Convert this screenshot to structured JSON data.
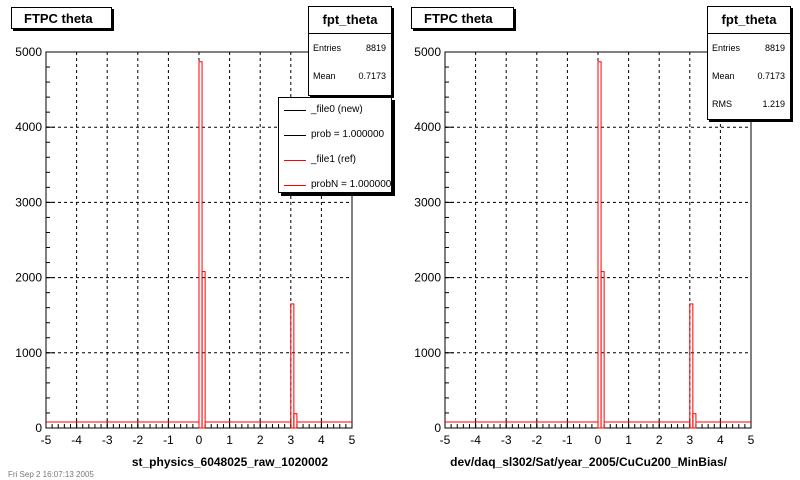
{
  "chart_data": [
    {
      "type": "bar",
      "title": "FTPC theta",
      "xlabel": "st_physics_6048025_raw_1020002",
      "ylabel": "",
      "xlim": [
        -5,
        5
      ],
      "ylim": [
        0,
        5000
      ],
      "xticks": [
        "-5",
        "-4",
        "-3",
        "-2",
        "-1",
        "0",
        "1",
        "2",
        "3",
        "4",
        "5"
      ],
      "yticks": [
        "0",
        "1000",
        "2000",
        "3000",
        "4000",
        "5000"
      ],
      "grid": true,
      "bin_width": 0.1,
      "series": [
        {
          "name": "_file1 (ref)",
          "color": "#ff0000",
          "bins": [
            [
              0.0,
              4870
            ],
            [
              0.1,
              2080
            ],
            [
              3.0,
              1650
            ],
            [
              3.1,
              190
            ]
          ],
          "baseline": 80
        }
      ],
      "stats": {
        "title": "fpt_theta",
        "rows": [
          {
            "label": "Entries",
            "value": "8819"
          },
          {
            "label": "Mean",
            "value": "0.7173"
          }
        ]
      },
      "legend": {
        "placement": "top-right",
        "entries": [
          {
            "label": "_file0 (new)",
            "color": "#000000"
          },
          {
            "label": "prob = 1.000000",
            "color": "#000000"
          },
          {
            "label": "_file1 (ref)",
            "color": "#ff0000"
          },
          {
            "label": "probN = 1.000000",
            "color": "#ff0000"
          }
        ]
      }
    },
    {
      "type": "bar",
      "title": "FTPC theta",
      "xlabel": "dev/daq_sl302/Sat/year_2005/CuCu200_MinBias/",
      "ylabel": "",
      "xlim": [
        -5,
        5
      ],
      "ylim": [
        0,
        5000
      ],
      "xticks": [
        "-5",
        "-4",
        "-3",
        "-2",
        "-1",
        "0",
        "1",
        "2",
        "3",
        "4",
        "5"
      ],
      "yticks": [
        "0",
        "1000",
        "2000",
        "3000",
        "4000",
        "5000"
      ],
      "grid": true,
      "bin_width": 0.1,
      "series": [
        {
          "name": "",
          "color": "#ff0000",
          "bins": [
            [
              0.0,
              4870
            ],
            [
              0.1,
              2080
            ],
            [
              3.0,
              1650
            ],
            [
              3.1,
              190
            ]
          ],
          "baseline": 80
        }
      ],
      "stats": {
        "title": "fpt_theta",
        "rows": [
          {
            "label": "Entries",
            "value": "8819"
          },
          {
            "label": "Mean",
            "value": "0.7173"
          },
          {
            "label": "RMS",
            "value": "1.219"
          }
        ]
      }
    }
  ],
  "footer": "Fri Sep  2 16:07:13 2005"
}
